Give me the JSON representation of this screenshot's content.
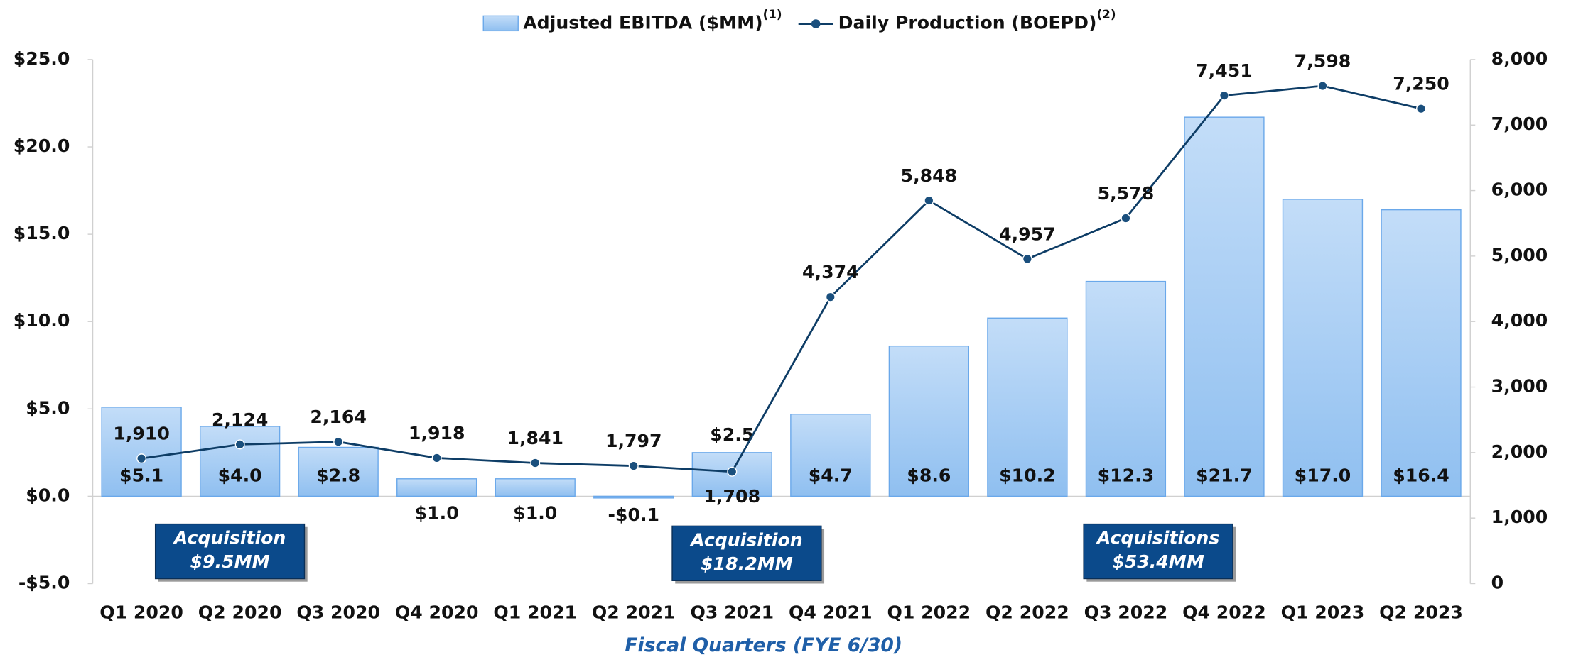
{
  "chart_data": {
    "type": "bar-line",
    "x_label": "Fiscal Quarters (FYE 6/30)",
    "categories": [
      "Q1 2020",
      "Q2 2020",
      "Q3 2020",
      "Q4 2020",
      "Q1 2021",
      "Q2 2021",
      "Q3 2021",
      "Q4 2021",
      "Q1 2022",
      "Q2 2022",
      "Q3 2022",
      "Q4 2022",
      "Q1 2023",
      "Q2 2023"
    ],
    "series": [
      {
        "name": "Adjusted EBITDA ($MM)",
        "superscript": "(1)",
        "type": "bar",
        "color": "#a9cdf4",
        "axis": "y",
        "values": [
          5.1,
          4.0,
          2.8,
          1.0,
          1.0,
          -0.1,
          2.5,
          4.7,
          8.6,
          10.2,
          12.3,
          21.7,
          17.0,
          16.4
        ],
        "value_labels": [
          "$5.1",
          "$4.0",
          "$2.8",
          "$1.0",
          "$1.0",
          "-$0.1",
          "$2.5",
          "$4.7",
          "$8.6",
          "$10.2",
          "$12.3",
          "$21.7",
          "$17.0",
          "$16.4"
        ]
      },
      {
        "name": "Daily Production (BOEPD)",
        "superscript": "(2)",
        "type": "line",
        "color": "#0e3d66",
        "axis": "y2",
        "values": [
          1910,
          2124,
          2164,
          1918,
          1841,
          1797,
          1708,
          4374,
          5848,
          4957,
          5578,
          7451,
          7598,
          7250
        ],
        "value_labels": [
          "1,910",
          "2,124",
          "2,164",
          "1,918",
          "1,841",
          "1,797",
          "1,708",
          "4,374",
          "5,848",
          "4,957",
          "5,578",
          "7,451",
          "7,598",
          "7,250"
        ]
      }
    ],
    "ylim": [
      -5,
      25
    ],
    "yticks": [
      {
        "value": -5,
        "label": "-$5.0"
      },
      {
        "value": 0,
        "label": "$0.0"
      },
      {
        "value": 5,
        "label": "$5.0"
      },
      {
        "value": 10,
        "label": "$10.0"
      },
      {
        "value": 15,
        "label": "$15.0"
      },
      {
        "value": 20,
        "label": "$20.0"
      },
      {
        "value": 25,
        "label": "$25.0"
      }
    ],
    "y2lim": [
      0,
      8000
    ],
    "y2ticks": [
      0,
      {
        "value": 1000,
        "label": "1,000"
      },
      {
        "value": 2000,
        "label": "2,000"
      },
      {
        "value": 3000,
        "label": "3,000"
      },
      {
        "value": 4000,
        "label": "4,000"
      },
      {
        "value": 5000,
        "label": "5,000"
      },
      {
        "value": 6000,
        "label": "6,000"
      },
      {
        "value": 7000,
        "label": "7,000"
      },
      {
        "value": 8000,
        "label": "8,000"
      }
    ],
    "annotations": [
      {
        "lines": [
          "Acquisition",
          "$9.5MM"
        ]
      },
      {
        "lines": [
          "Acquisition",
          "$18.2MM"
        ]
      },
      {
        "lines": [
          "Acquisitions",
          "$53.4MM"
        ]
      }
    ]
  }
}
